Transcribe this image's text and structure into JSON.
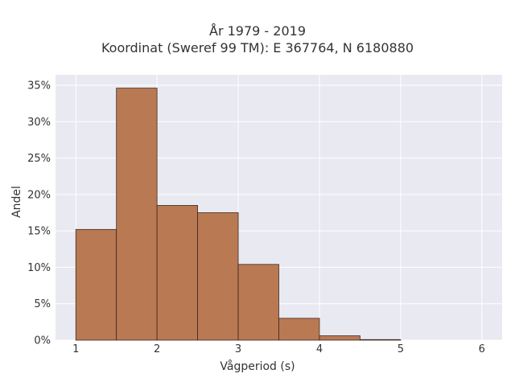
{
  "chart_data": {
    "type": "bar",
    "title_lines": [
      "År 1979 - 2019",
      "Koordinat (Sweref 99 TM): E 367764, N 6180880"
    ],
    "xlabel": "Vågperiod (s)",
    "ylabel": "Andel",
    "bins": [
      {
        "x0": 1.0,
        "x1": 1.5,
        "value": 0.152
      },
      {
        "x0": 1.5,
        "x1": 2.0,
        "value": 0.346
      },
      {
        "x0": 2.0,
        "x1": 2.5,
        "value": 0.185
      },
      {
        "x0": 2.5,
        "x1": 3.0,
        "value": 0.175
      },
      {
        "x0": 3.0,
        "x1": 3.5,
        "value": 0.104
      },
      {
        "x0": 3.5,
        "x1": 4.0,
        "value": 0.03
      },
      {
        "x0": 4.0,
        "x1": 4.5,
        "value": 0.006
      },
      {
        "x0": 4.5,
        "x1": 5.0,
        "value": 0.0008
      }
    ],
    "xlim": [
      0.75,
      6.25
    ],
    "ylim": [
      0,
      0.35
    ],
    "xticks": [
      1,
      2,
      3,
      4,
      5,
      6
    ],
    "xtick_labels": [
      "1",
      "2",
      "3",
      "4",
      "5",
      "6"
    ],
    "yticks": [
      0,
      0.05,
      0.1,
      0.15,
      0.2,
      0.25,
      0.3,
      0.35
    ],
    "ytick_labels": [
      "0%",
      "5%",
      "10%",
      "15%",
      "20%",
      "25%",
      "30%",
      "35%"
    ],
    "grid": true,
    "bar_color": "#b97953",
    "bar_edge_color": "#3c2a20",
    "plot_background": "#e9e9f1",
    "grid_color": "#ffffff"
  }
}
